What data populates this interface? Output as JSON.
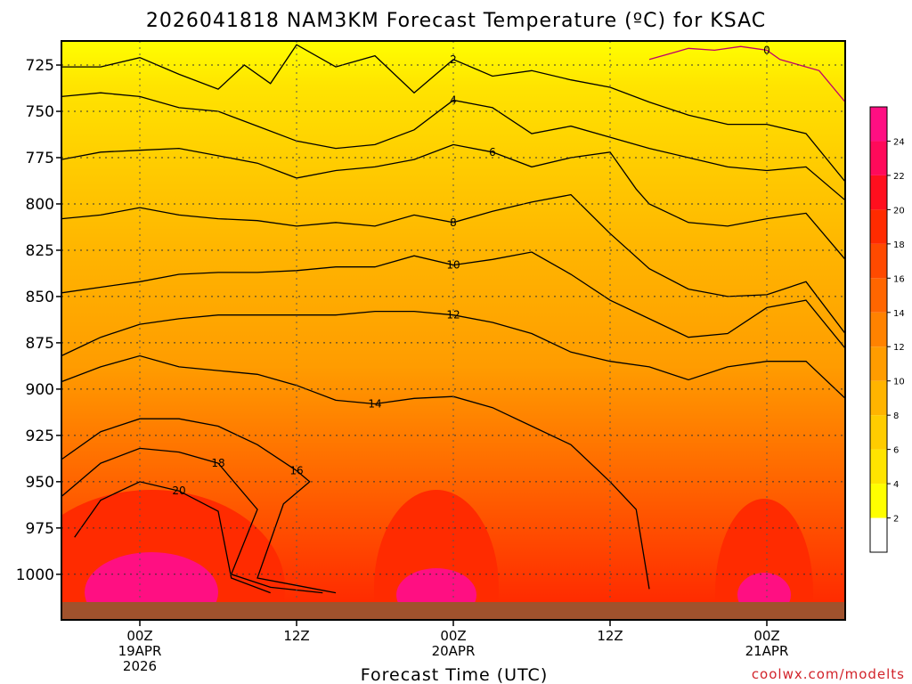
{
  "chart_data": {
    "type": "heatmap",
    "title": "2026041818 NAM3KM Forecast Temperature (ºC) for KSAC",
    "xlabel": "Forecast Time (UTC)",
    "ylabel": "",
    "credit": "coolwx.com/modelts",
    "y_axis": {
      "unit": "hPa",
      "range": [
        1015,
        712
      ],
      "ticks": [
        725,
        750,
        775,
        800,
        825,
        850,
        875,
        900,
        925,
        950,
        975,
        1000
      ]
    },
    "x_axis": {
      "unit": "forecast hour from 2026-04-18 18Z",
      "range": [
        0,
        60
      ],
      "ticks": [
        {
          "hour": 6,
          "line1": "00Z",
          "line2": "19APR",
          "line3": "2026"
        },
        {
          "hour": 18,
          "line1": "12Z",
          "line2": "",
          "line3": ""
        },
        {
          "hour": 30,
          "line1": "00Z",
          "line2": "20APR",
          "line3": ""
        },
        {
          "hour": 42,
          "line1": "12Z",
          "line2": "",
          "line3": ""
        },
        {
          "hour": 54,
          "line1": "00Z",
          "line2": "21APR",
          "line3": ""
        }
      ]
    },
    "colorbar": {
      "levels": [
        2,
        4,
        6,
        8,
        10,
        12,
        14,
        16,
        18,
        20,
        22,
        24
      ],
      "colors": [
        "#ffffff",
        "#ffff00",
        "#ffe400",
        "#ffcc00",
        "#ffb400",
        "#ff9c00",
        "#ff8200",
        "#ff6600",
        "#ff4a00",
        "#ff2b00",
        "#ff0f1e",
        "#ff0a5a",
        "#ff0f82"
      ]
    },
    "contours": [
      {
        "value": 0,
        "label": "0",
        "points": [
          [
            45,
            722
          ],
          [
            48,
            716
          ],
          [
            50,
            717
          ],
          [
            52,
            715
          ],
          [
            54,
            717
          ],
          [
            55,
            722
          ],
          [
            58,
            728
          ],
          [
            60,
            745
          ]
        ]
      },
      {
        "value": 2,
        "label": "2",
        "points": [
          [
            0,
            726
          ],
          [
            3,
            726
          ],
          [
            6,
            721
          ],
          [
            9,
            730
          ],
          [
            12,
            738
          ],
          [
            14,
            725
          ],
          [
            16,
            735
          ],
          [
            18,
            714
          ],
          [
            21,
            726
          ],
          [
            24,
            720
          ],
          [
            27,
            740
          ],
          [
            30,
            722
          ],
          [
            33,
            731
          ],
          [
            36,
            728
          ],
          [
            39,
            733
          ],
          [
            42,
            737
          ],
          [
            45,
            745
          ],
          [
            48,
            752
          ],
          [
            51,
            757
          ],
          [
            54,
            757
          ],
          [
            57,
            762
          ],
          [
            60,
            788
          ]
        ]
      },
      {
        "value": 4,
        "label": "4",
        "points": [
          [
            0,
            742
          ],
          [
            3,
            740
          ],
          [
            6,
            742
          ],
          [
            9,
            748
          ],
          [
            12,
            750
          ],
          [
            15,
            758
          ],
          [
            18,
            766
          ],
          [
            21,
            770
          ],
          [
            24,
            768
          ],
          [
            27,
            760
          ],
          [
            30,
            744
          ],
          [
            33,
            748
          ],
          [
            36,
            762
          ],
          [
            39,
            758
          ],
          [
            42,
            764
          ],
          [
            45,
            770
          ],
          [
            48,
            775
          ],
          [
            51,
            780
          ],
          [
            54,
            782
          ],
          [
            57,
            780
          ],
          [
            60,
            798
          ]
        ]
      },
      {
        "value": 6,
        "label": "6",
        "points": [
          [
            0,
            776
          ],
          [
            3,
            772
          ],
          [
            6,
            771
          ],
          [
            9,
            770
          ],
          [
            12,
            774
          ],
          [
            15,
            778
          ],
          [
            18,
            786
          ],
          [
            21,
            782
          ],
          [
            24,
            780
          ],
          [
            27,
            776
          ],
          [
            30,
            768
          ],
          [
            33,
            772
          ],
          [
            36,
            780
          ],
          [
            39,
            775
          ],
          [
            42,
            772
          ],
          [
            44,
            792
          ],
          [
            45,
            800
          ],
          [
            48,
            810
          ],
          [
            51,
            812
          ],
          [
            54,
            808
          ],
          [
            57,
            805
          ],
          [
            60,
            830
          ]
        ]
      },
      {
        "value": 8,
        "label": "8",
        "points": [
          [
            0,
            808
          ],
          [
            3,
            806
          ],
          [
            6,
            802
          ],
          [
            9,
            806
          ],
          [
            12,
            808
          ],
          [
            15,
            809
          ],
          [
            18,
            812
          ],
          [
            21,
            810
          ],
          [
            24,
            812
          ],
          [
            27,
            806
          ],
          [
            30,
            810
          ],
          [
            33,
            804
          ],
          [
            36,
            799
          ],
          [
            39,
            795
          ],
          [
            42,
            816
          ],
          [
            45,
            835
          ],
          [
            48,
            846
          ],
          [
            51,
            850
          ],
          [
            54,
            849
          ],
          [
            57,
            842
          ],
          [
            60,
            870
          ]
        ]
      },
      {
        "value": 10,
        "label": "10",
        "points": [
          [
            0,
            848
          ],
          [
            3,
            845
          ],
          [
            6,
            842
          ],
          [
            9,
            838
          ],
          [
            12,
            837
          ],
          [
            15,
            837
          ],
          [
            18,
            836
          ],
          [
            21,
            834
          ],
          [
            24,
            834
          ],
          [
            27,
            828
          ],
          [
            30,
            833
          ],
          [
            33,
            830
          ],
          [
            36,
            826
          ],
          [
            39,
            838
          ],
          [
            42,
            852
          ],
          [
            45,
            862
          ],
          [
            48,
            872
          ],
          [
            51,
            870
          ],
          [
            54,
            856
          ],
          [
            57,
            852
          ],
          [
            60,
            878
          ]
        ]
      },
      {
        "value": 12,
        "label": "12",
        "points": [
          [
            0,
            882
          ],
          [
            3,
            872
          ],
          [
            6,
            865
          ],
          [
            9,
            862
          ],
          [
            12,
            860
          ],
          [
            15,
            860
          ],
          [
            18,
            860
          ],
          [
            21,
            860
          ],
          [
            24,
            858
          ],
          [
            27,
            858
          ],
          [
            30,
            860
          ],
          [
            33,
            864
          ],
          [
            36,
            870
          ],
          [
            39,
            880
          ],
          [
            42,
            885
          ],
          [
            45,
            888
          ],
          [
            48,
            895
          ],
          [
            51,
            888
          ],
          [
            54,
            885
          ],
          [
            57,
            885
          ],
          [
            60,
            905
          ]
        ]
      },
      {
        "value": 14,
        "label": "14",
        "points": [
          [
            0,
            896
          ],
          [
            3,
            888
          ],
          [
            6,
            882
          ],
          [
            9,
            888
          ],
          [
            12,
            890
          ],
          [
            15,
            892
          ],
          [
            18,
            898
          ],
          [
            21,
            906
          ],
          [
            24,
            908
          ],
          [
            27,
            905
          ],
          [
            30,
            904
          ],
          [
            33,
            910
          ],
          [
            36,
            920
          ],
          [
            39,
            930
          ],
          [
            42,
            950
          ],
          [
            44,
            965
          ],
          [
            45,
            1008
          ]
        ]
      },
      {
        "value": 16,
        "label": "16",
        "points": [
          [
            0,
            938
          ],
          [
            3,
            923
          ],
          [
            6,
            916
          ],
          [
            9,
            916
          ],
          [
            12,
            920
          ],
          [
            15,
            930
          ],
          [
            18,
            944
          ],
          [
            19,
            950
          ],
          [
            17,
            962
          ],
          [
            15,
            1002
          ],
          [
            18,
            1006
          ],
          [
            21,
            1010
          ]
        ]
      },
      {
        "value": 18,
        "label": "18",
        "points": [
          [
            0,
            958
          ],
          [
            3,
            940
          ],
          [
            6,
            932
          ],
          [
            9,
            934
          ],
          [
            12,
            940
          ],
          [
            15,
            965
          ],
          [
            13,
            1000
          ],
          [
            16,
            1007
          ],
          [
            20,
            1010
          ]
        ]
      },
      {
        "value": 20,
        "label": "20",
        "points": [
          [
            1,
            980
          ],
          [
            3,
            960
          ],
          [
            6,
            950
          ],
          [
            9,
            955
          ],
          [
            12,
            966
          ],
          [
            13,
            1002
          ],
          [
            16,
            1010
          ]
        ]
      }
    ]
  }
}
